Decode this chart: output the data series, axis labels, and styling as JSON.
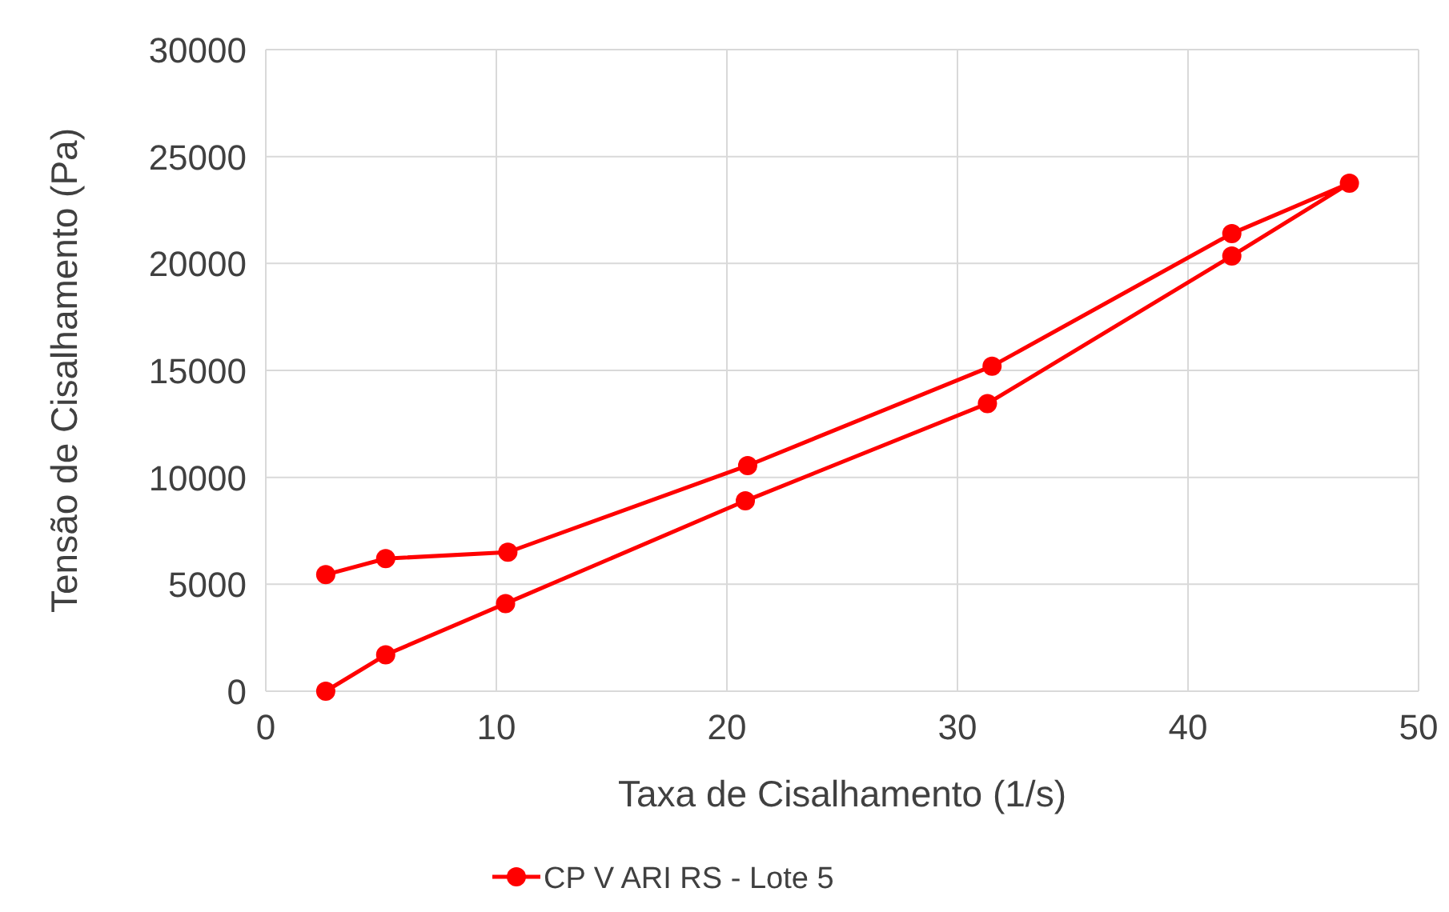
{
  "chart_data": {
    "type": "line",
    "xlabel": "Taxa de Cisalhamento (1/s)",
    "ylabel": "Tensão de Cisalhamento (Pa)",
    "series": [
      {
        "name": "CP V ARI RS - Lote 5",
        "color": "#ff0000",
        "x": [
          2.6,
          5.2,
          10.4,
          20.8,
          31.3,
          41.9,
          47.0,
          41.9,
          31.5,
          20.9,
          10.5,
          5.2,
          2.6
        ],
        "values": [
          0,
          1700,
          4100,
          8900,
          13450,
          20350,
          23750,
          21400,
          15200,
          10550,
          6500,
          6200,
          5450
        ]
      }
    ],
    "xlim": [
      0,
      50
    ],
    "xticks": [
      0,
      10,
      20,
      30,
      40,
      50
    ],
    "ylim": [
      0,
      30000
    ],
    "yticks": [
      0,
      5000,
      10000,
      15000,
      20000,
      25000,
      30000
    ],
    "grid": true,
    "legend": "bottom",
    "marker": "circle",
    "line_style": "solid"
  }
}
